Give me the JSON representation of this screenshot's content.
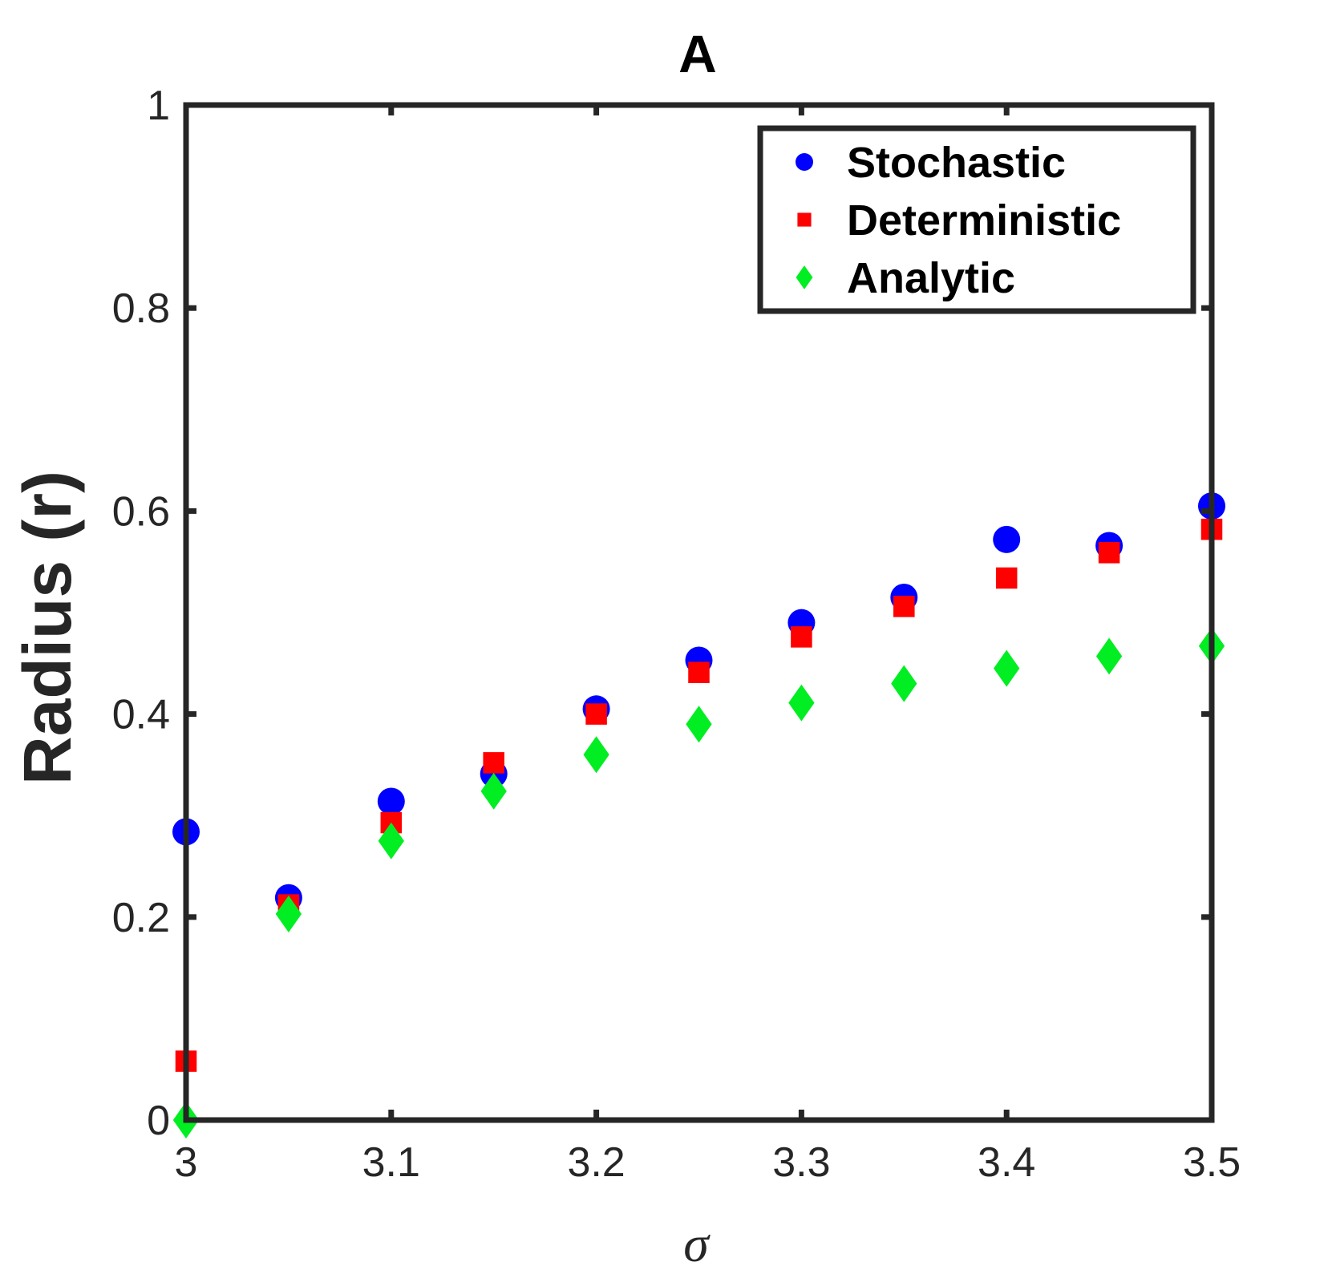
{
  "chart_data": {
    "type": "scatter",
    "title": "A",
    "xlabel": "σ",
    "ylabel": "Radius (r)",
    "xlim": [
      3,
      3.5
    ],
    "ylim": [
      0,
      1
    ],
    "xticks": [
      3,
      3.1,
      3.2,
      3.3,
      3.4,
      3.5
    ],
    "xtick_labels": [
      "3",
      "3.1",
      "3.2",
      "3.3",
      "3.4",
      "3.5"
    ],
    "yticks": [
      0,
      0.2,
      0.4,
      0.6,
      0.8,
      1
    ],
    "ytick_labels": [
      "0",
      "0.2",
      "0.4",
      "0.6",
      "0.8",
      "1"
    ],
    "grid": false,
    "legend_position": "top-right",
    "x": [
      3.0,
      3.05,
      3.1,
      3.15,
      3.2,
      3.25,
      3.3,
      3.35,
      3.4,
      3.45,
      3.5
    ],
    "series": [
      {
        "name": "Stochastic",
        "marker": "circle",
        "color": "#0000ff",
        "values": [
          0.284,
          0.219,
          0.314,
          0.341,
          0.405,
          0.453,
          0.49,
          0.515,
          0.572,
          0.566,
          0.605
        ]
      },
      {
        "name": "Deterministic",
        "marker": "square",
        "color": "#ff0000",
        "values": [
          0.058,
          0.212,
          0.293,
          0.352,
          0.4,
          0.441,
          0.476,
          0.506,
          0.534,
          0.559,
          0.582
        ]
      },
      {
        "name": "Analytic",
        "marker": "diamond",
        "color": "#00ee22",
        "values": [
          0.0,
          0.203,
          0.275,
          0.324,
          0.36,
          0.39,
          0.411,
          0.43,
          0.445,
          0.457,
          0.467
        ]
      }
    ]
  }
}
